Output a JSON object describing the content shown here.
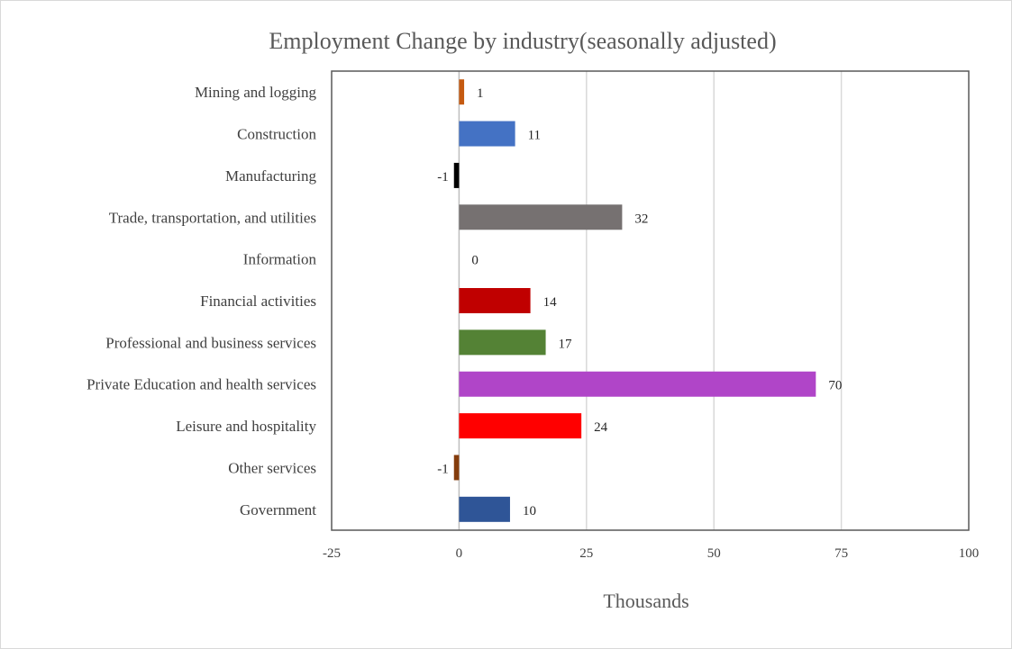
{
  "chart_data": {
    "type": "bar",
    "orientation": "horizontal",
    "title": "Employment Change by industry(seasonally adjusted)",
    "xlabel": "Thousands",
    "ylabel": "",
    "xlim": [
      -25,
      100
    ],
    "x_ticks": [
      -25,
      0,
      25,
      50,
      75,
      100
    ],
    "grid": "vertical",
    "legend": "none",
    "categories": [
      "Mining and logging",
      "Construction",
      "Manufacturing",
      "Trade, transportation, and utilities",
      "Information",
      "Financial activities",
      "Professional and business services",
      "Private Education and health services",
      "Leisure and hospitality",
      "Other services",
      "Government"
    ],
    "values": [
      1,
      11,
      -1,
      32,
      0,
      14,
      17,
      70,
      24,
      -1,
      10
    ],
    "colors": [
      "#C55A11",
      "#4472C4",
      "#000000",
      "#767171",
      "#A5A5A5",
      "#C00000",
      "#548235",
      "#B045C8",
      "#FF0000",
      "#843C0C",
      "#2F5597"
    ]
  }
}
